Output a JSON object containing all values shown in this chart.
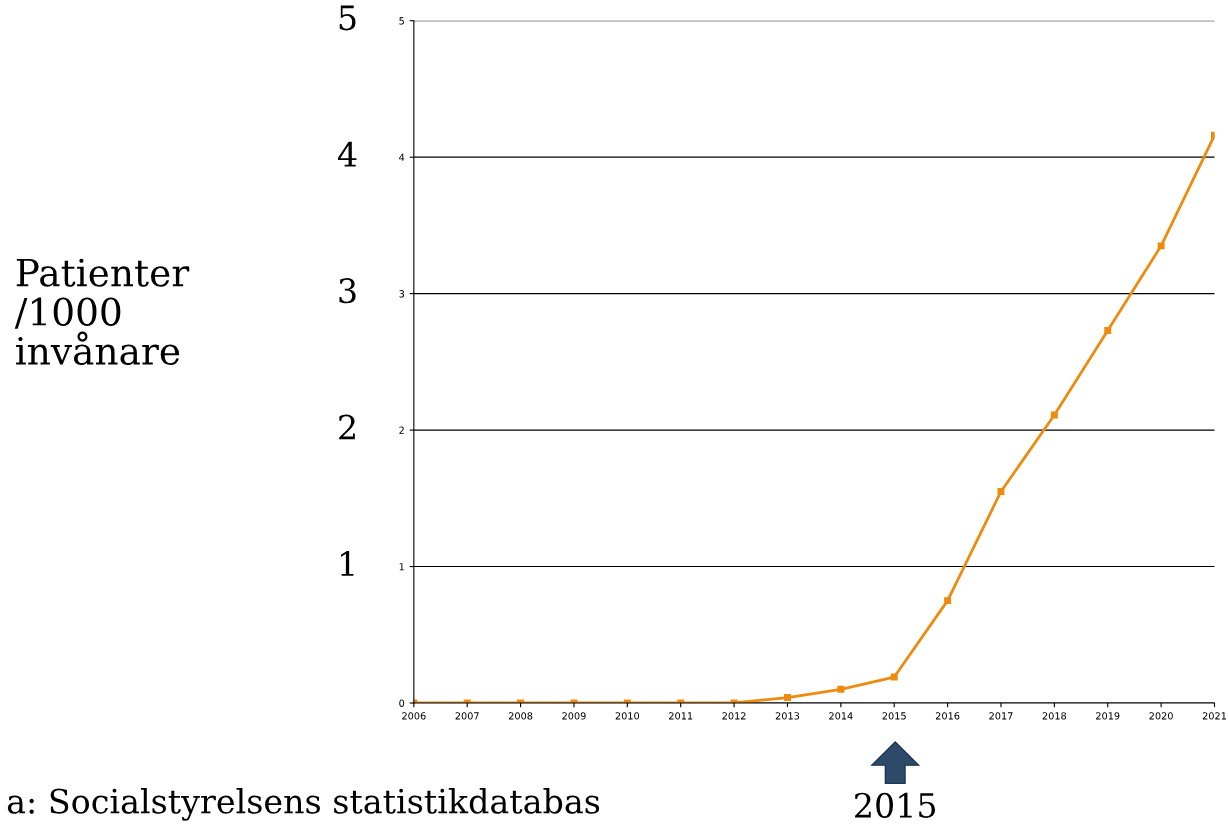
{
  "chart_data": {
    "type": "line",
    "x": [
      2006,
      2007,
      2008,
      2009,
      2010,
      2011,
      2012,
      2013,
      2014,
      2015,
      2016,
      2017,
      2018,
      2019,
      2020,
      2021
    ],
    "series": [
      {
        "color": "#ee8a0e",
        "values": [
          0,
          0,
          0,
          0,
          0,
          0,
          0,
          0.04,
          0.1,
          0.19,
          0.75,
          1.55,
          2.11,
          2.73,
          3.35,
          4.16
        ]
      }
    ],
    "xlim": [
      2006,
      2021
    ],
    "ylim": [
      0,
      5
    ],
    "xticks": [
      2006,
      2007,
      2008,
      2009,
      2010,
      2011,
      2012,
      2013,
      2014,
      2015,
      2016,
      2017,
      2018,
      2019,
      2020,
      2021
    ],
    "yticks": [
      0,
      1,
      2,
      3,
      4,
      5
    ],
    "grid": "y",
    "marker": "square",
    "line_style": "solid",
    "annotations": [
      "1",
      "2",
      "3",
      "4",
      "5",
      "2015",
      "Patienter\n/1000\ninvånare",
      "a: Socialstyrelsens statistikdatabas"
    ]
  }
}
